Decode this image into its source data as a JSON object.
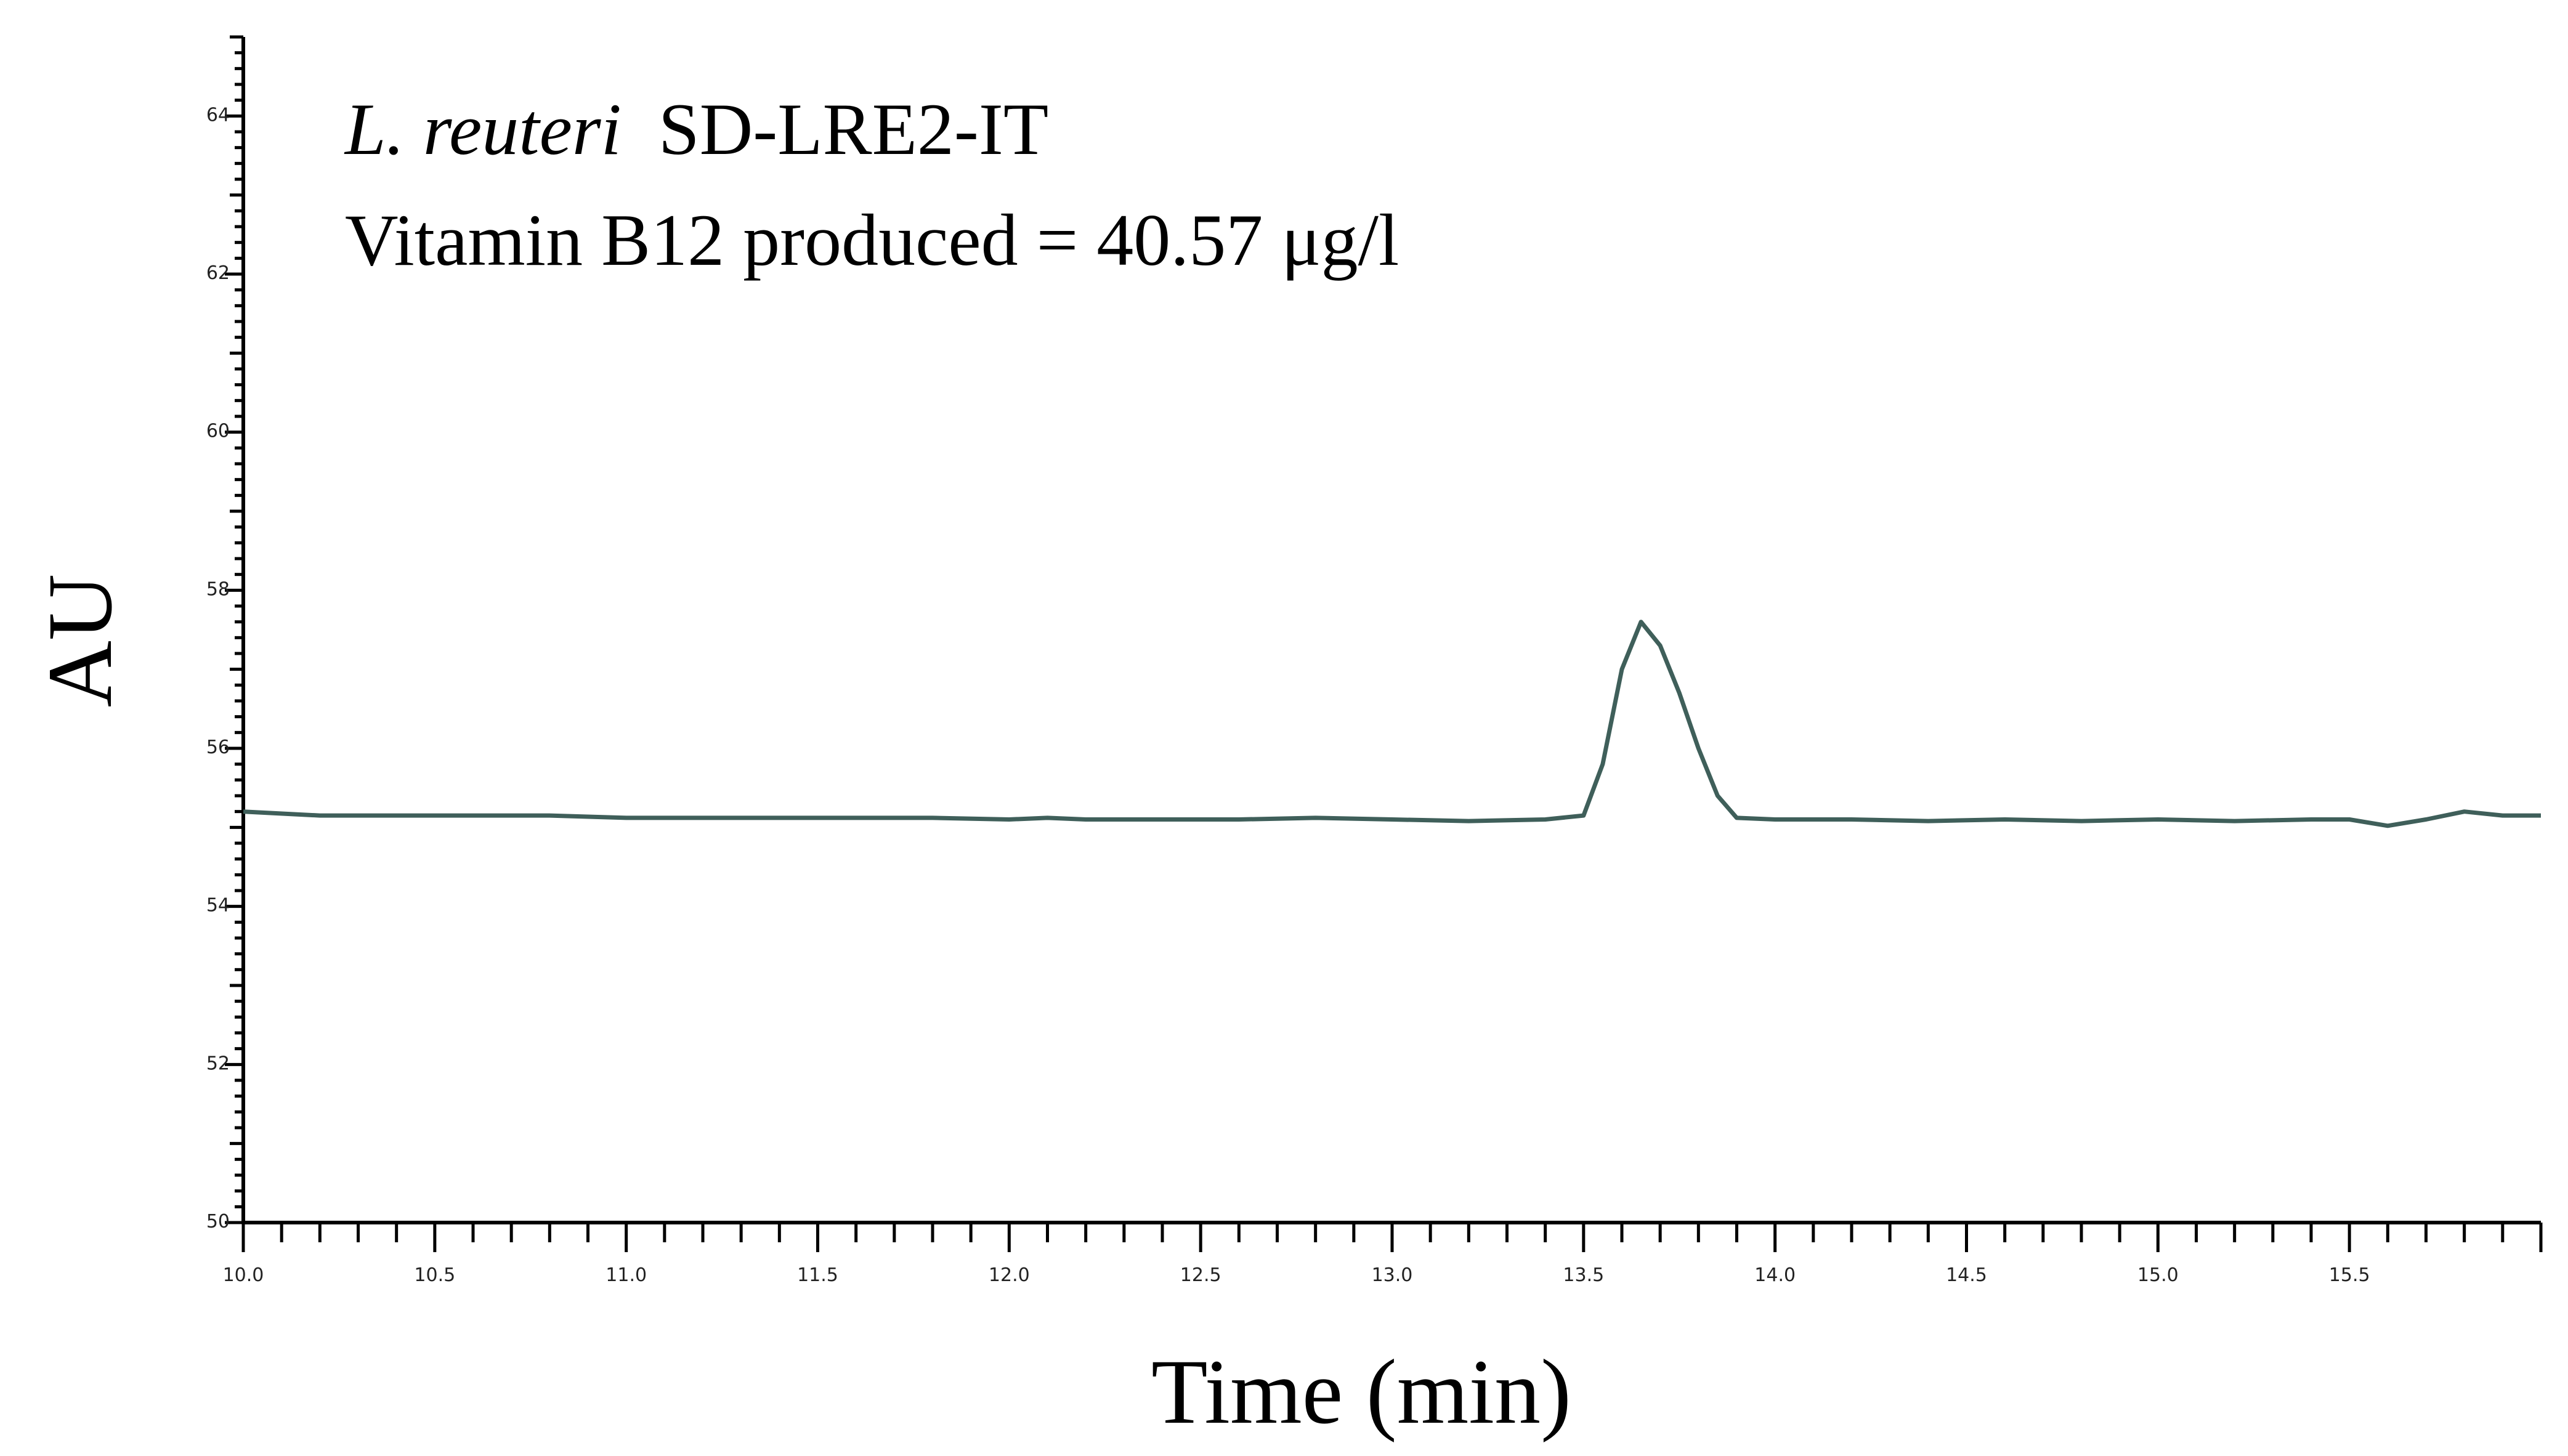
{
  "chart_data": {
    "type": "line",
    "title": "",
    "xlabel": "Time (min)",
    "ylabel": "AU",
    "xlim": [
      10.0,
      16.0
    ],
    "ylim": [
      50,
      65
    ],
    "x_ticks": [
      "10.0",
      "10.5",
      "11.0",
      "11.5",
      "12.0",
      "12.5",
      "13.0",
      "13.5",
      "14.0",
      "14.5",
      "15.0",
      "15.5"
    ],
    "y_ticks": [
      "50",
      "52",
      "54",
      "56",
      "58",
      "60",
      "62",
      "64"
    ],
    "annotation": {
      "strain_italic": "L. reuteri",
      "strain_rest": "SD-LRE2-IT",
      "result": "Vitamin B12 produced = 40.57 μg/l"
    },
    "grid": false,
    "line_color": "#3f5f5a",
    "series": [
      {
        "x": [
          10.0,
          10.2,
          10.4,
          10.6,
          10.8,
          11.0,
          11.2,
          11.4,
          11.6,
          11.8,
          12.0,
          12.1,
          12.2,
          12.4,
          12.6,
          12.8,
          13.0,
          13.2,
          13.4,
          13.5,
          13.55,
          13.6,
          13.65,
          13.7,
          13.75,
          13.8,
          13.85,
          13.9,
          14.0,
          14.2,
          14.4,
          14.6,
          14.8,
          15.0,
          15.2,
          15.4,
          15.5,
          15.6,
          15.7,
          15.8,
          15.9,
          16.0
        ],
        "values": [
          55.2,
          55.15,
          55.15,
          55.15,
          55.15,
          55.12,
          55.12,
          55.12,
          55.12,
          55.12,
          55.1,
          55.12,
          55.1,
          55.1,
          55.1,
          55.12,
          55.1,
          55.08,
          55.1,
          55.15,
          55.8,
          57.0,
          57.6,
          57.3,
          56.7,
          56.0,
          55.4,
          55.12,
          55.1,
          55.1,
          55.08,
          55.1,
          55.08,
          55.1,
          55.08,
          55.1,
          55.1,
          55.02,
          55.1,
          55.2,
          55.15,
          55.15
        ]
      }
    ]
  }
}
